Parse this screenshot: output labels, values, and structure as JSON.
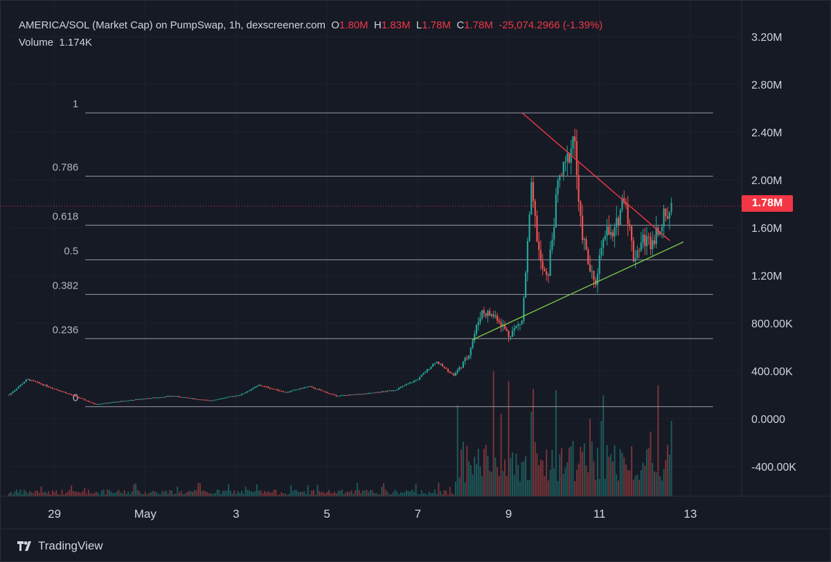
{
  "legend": {
    "pair": "AMERICA/SOL (Market Cap) on PumpSwap, 1h, dexscreener.com",
    "open_label": "O",
    "open_value": "1.80M",
    "high_label": "H",
    "high_value": "1.83M",
    "low_label": "L",
    "low_value": "1.78M",
    "close_label": "C",
    "close_value": "1.78M",
    "change": "-25,074.2966 (-1.39%)",
    "volume_label": "Volume",
    "volume_value": "1.174K"
  },
  "last_price_label": "1.78M",
  "brand": "TradingView",
  "colors": {
    "background": "#161a25",
    "up": "#26a69a",
    "down": "#ef5350",
    "fib_line": "#b2b5be",
    "trend_upper": "#f23645",
    "trend_lower": "#7cc64b",
    "text": "#d1d4dc"
  },
  "chart_data": {
    "type": "candlestick",
    "title": "AMERICA/SOL (Market Cap) on PumpSwap, 1h, dexscreener.com",
    "y_axis": {
      "ticks": [
        3200000,
        2800000,
        2400000,
        2000000,
        1600000,
        1200000,
        800000,
        400000,
        0,
        -400000
      ],
      "tick_labels": [
        "3.20M",
        "2.80M",
        "2.40M",
        "2.00M",
        "1.60M",
        "1.20M",
        "800.00K",
        "400.00K",
        "0.0000",
        "-400.00K"
      ],
      "range": [
        -650000,
        3500000
      ]
    },
    "x_axis": {
      "tick_labels": [
        "29",
        "May",
        "3",
        "5",
        "7",
        "9",
        "11",
        "13"
      ],
      "tick_days": [
        0,
        2,
        4,
        6,
        8,
        10,
        12,
        14
      ],
      "range_days": [
        -1.0,
        15.1
      ]
    },
    "fibonacci": [
      {
        "level": "1",
        "value": 2560000
      },
      {
        "level": "0.786",
        "value": 2030000
      },
      {
        "level": "0.618",
        "value": 1620000
      },
      {
        "level": "0.5",
        "value": 1330000
      },
      {
        "level": "0.382",
        "value": 1040000
      },
      {
        "level": "0.236",
        "value": 670000
      },
      {
        "level": "0",
        "value": 100000
      }
    ],
    "fib_day_range": [
      0.68,
      14.5
    ],
    "trendlines": [
      {
        "name": "resistance",
        "from": {
          "day": 10.3,
          "value": 2560000
        },
        "to": {
          "day": 13.55,
          "value": 1490000
        }
      },
      {
        "name": "support",
        "from": {
          "day": 9.2,
          "value": 660000
        },
        "to": {
          "day": 13.85,
          "value": 1480000
        }
      }
    ],
    "last_price": 1780000,
    "anchors": [
      [
        -1.0,
        200000,
        0
      ],
      [
        -0.6,
        330000,
        0
      ],
      [
        0.0,
        250000,
        0
      ],
      [
        0.5,
        180000,
        0
      ],
      [
        0.9,
        120000,
        0
      ],
      [
        1.8,
        160000,
        0
      ],
      [
        2.6,
        190000,
        0
      ],
      [
        3.4,
        150000,
        0
      ],
      [
        4.1,
        200000,
        0
      ],
      [
        4.5,
        280000,
        0
      ],
      [
        5.1,
        220000,
        0
      ],
      [
        5.6,
        270000,
        0
      ],
      [
        6.2,
        190000,
        0
      ],
      [
        6.9,
        210000,
        0
      ],
      [
        7.5,
        240000,
        0
      ],
      [
        8.0,
        330000,
        0
      ],
      [
        8.4,
        480000,
        0
      ],
      [
        8.8,
        360000,
        1
      ],
      [
        9.1,
        520000,
        1
      ],
      [
        9.4,
        900000,
        1
      ],
      [
        9.75,
        850000,
        1
      ],
      [
        10.0,
        700000,
        1
      ],
      [
        10.3,
        820000,
        1
      ],
      [
        10.5,
        1900000,
        1
      ],
      [
        10.7,
        1300000,
        1
      ],
      [
        10.85,
        1150000,
        1
      ],
      [
        11.1,
        2000000,
        1
      ],
      [
        11.25,
        2100000,
        1
      ],
      [
        11.45,
        2400000,
        1
      ],
      [
        11.55,
        1700000,
        1
      ],
      [
        11.75,
        1300000,
        1
      ],
      [
        11.9,
        1100000,
        1
      ],
      [
        12.1,
        1600000,
        1
      ],
      [
        12.3,
        1500000,
        1
      ],
      [
        12.55,
        1900000,
        1
      ],
      [
        12.75,
        1350000,
        1
      ],
      [
        12.95,
        1500000,
        1
      ],
      [
        13.15,
        1480000,
        1
      ],
      [
        13.35,
        1650000,
        1
      ],
      [
        13.6,
        1780000,
        1
      ]
    ]
  }
}
